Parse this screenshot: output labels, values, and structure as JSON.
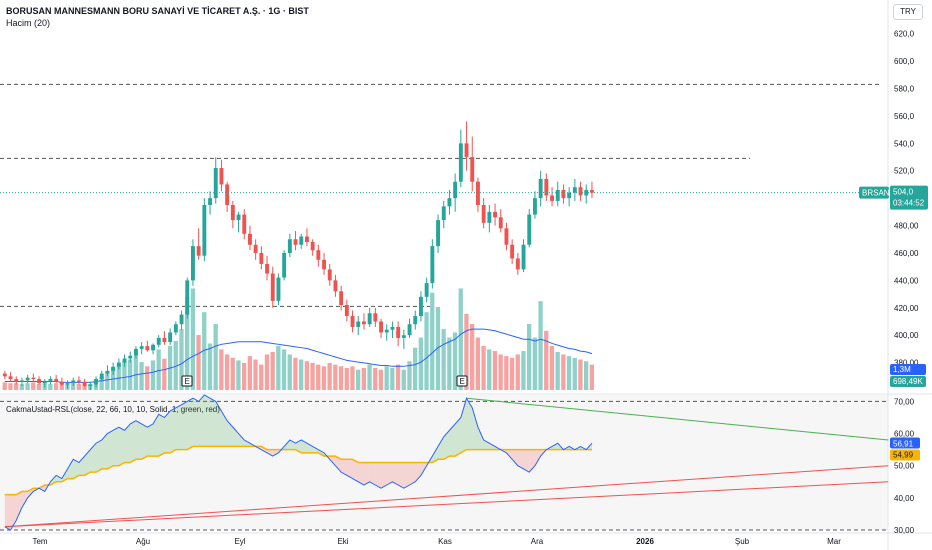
{
  "header": {
    "title": "BORUSAN MANNESMANN BORU SANAYİ VE TİCARET A.Ş. · 1G · BIST",
    "subtitle": "Hacim (20)",
    "currency": "TRY"
  },
  "indicator_label": "CakmaUstad-RSL(close, 22, 66, 10, 10, Solid, 1, green, red)",
  "colors": {
    "up": "#26a69a",
    "down": "#ef5350",
    "ma": "#2962ff",
    "signal": "#f7b500"
  },
  "chart_data": [
    {
      "type": "candlestick",
      "ylim": [
        360,
        630
      ],
      "price_ticks": [
        "620,0",
        "600,0",
        "580,0",
        "560,0",
        "540,0",
        "520,0",
        "500,0",
        "480,00",
        "460,00",
        "440,00",
        "420,00",
        "400,00",
        "380,00"
      ],
      "x_labels": [
        "Tem",
        "Ağu",
        "Eyl",
        "Eki",
        "Kas",
        "Ara",
        "2026",
        "Şub",
        "Mar"
      ],
      "last_price": {
        "symbol": "BRSAN",
        "price": "504,0",
        "countdown": "03:44:52"
      },
      "horizontal_levels": [
        583,
        529,
        421
      ],
      "candles": [
        [
          372,
          374,
          368,
          370
        ],
        [
          370,
          373,
          366,
          368
        ],
        [
          368,
          370,
          364,
          366
        ],
        [
          366,
          369,
          363,
          367
        ],
        [
          367,
          371,
          365,
          369
        ],
        [
          369,
          372,
          366,
          368
        ],
        [
          368,
          370,
          364,
          365
        ],
        [
          365,
          368,
          362,
          366
        ],
        [
          366,
          370,
          364,
          368
        ],
        [
          368,
          371,
          365,
          366
        ],
        [
          366,
          369,
          363,
          364
        ],
        [
          364,
          367,
          361,
          365
        ],
        [
          365,
          369,
          363,
          367
        ],
        [
          367,
          370,
          364,
          366
        ],
        [
          366,
          368,
          362,
          363
        ],
        [
          363,
          366,
          360,
          364
        ],
        [
          364,
          370,
          362,
          368
        ],
        [
          368,
          374,
          366,
          372
        ],
        [
          372,
          378,
          370,
          374
        ],
        [
          374,
          380,
          371,
          377
        ],
        [
          377,
          383,
          375,
          380
        ],
        [
          380,
          386,
          377,
          383
        ],
        [
          383,
          388,
          380,
          385
        ],
        [
          385,
          392,
          383,
          390
        ],
        [
          390,
          395,
          386,
          392
        ],
        [
          392,
          396,
          388,
          389
        ],
        [
          389,
          394,
          386,
          393
        ],
        [
          393,
          400,
          391,
          398
        ],
        [
          398,
          403,
          393,
          395
        ],
        [
          395,
          405,
          393,
          402
        ],
        [
          402,
          410,
          400,
          408
        ],
        [
          408,
          418,
          404,
          415
        ],
        [
          415,
          442,
          412,
          440
        ],
        [
          440,
          470,
          436,
          465
        ],
        [
          465,
          478,
          455,
          458
        ],
        [
          458,
          500,
          454,
          495
        ],
        [
          495,
          505,
          488,
          500
        ],
        [
          500,
          530,
          496,
          522
        ],
        [
          522,
          528,
          505,
          510
        ],
        [
          510,
          512,
          490,
          495
        ],
        [
          495,
          498,
          478,
          484
        ],
        [
          484,
          490,
          475,
          488
        ],
        [
          488,
          492,
          470,
          474
        ],
        [
          474,
          480,
          462,
          466
        ],
        [
          466,
          470,
          455,
          460
        ],
        [
          460,
          465,
          448,
          452
        ],
        [
          452,
          458,
          440,
          445
        ],
        [
          445,
          450,
          420,
          425
        ],
        [
          425,
          445,
          422,
          442
        ],
        [
          442,
          462,
          440,
          460
        ],
        [
          460,
          474,
          457,
          470
        ],
        [
          470,
          476,
          462,
          466
        ],
        [
          466,
          474,
          463,
          472
        ],
        [
          472,
          478,
          465,
          468
        ],
        [
          468,
          470,
          458,
          462
        ],
        [
          462,
          466,
          450,
          455
        ],
        [
          455,
          460,
          444,
          448
        ],
        [
          448,
          452,
          436,
          440
        ],
        [
          440,
          444,
          428,
          432
        ],
        [
          432,
          436,
          418,
          422
        ],
        [
          422,
          426,
          410,
          414
        ],
        [
          414,
          418,
          402,
          406
        ],
        [
          406,
          414,
          400,
          410
        ],
        [
          410,
          416,
          404,
          408
        ],
        [
          408,
          420,
          406,
          416
        ],
        [
          416,
          420,
          406,
          410
        ],
        [
          410,
          412,
          398,
          402
        ],
        [
          402,
          408,
          396,
          404
        ],
        [
          404,
          410,
          398,
          406
        ],
        [
          406,
          410,
          392,
          398
        ],
        [
          398,
          404,
          390,
          400
        ],
        [
          400,
          412,
          398,
          408
        ],
        [
          408,
          418,
          404,
          414
        ],
        [
          414,
          432,
          410,
          428
        ],
        [
          428,
          442,
          424,
          438
        ],
        [
          438,
          470,
          434,
          465
        ],
        [
          465,
          488,
          460,
          484
        ],
        [
          484,
          498,
          478,
          494
        ],
        [
          494,
          506,
          488,
          500
        ],
        [
          500,
          518,
          490,
          512
        ],
        [
          512,
          550,
          508,
          540
        ],
        [
          540,
          556,
          520,
          530
        ],
        [
          530,
          545,
          505,
          512
        ],
        [
          512,
          515,
          490,
          495
        ],
        [
          495,
          500,
          478,
          482
        ],
        [
          482,
          495,
          475,
          490
        ],
        [
          490,
          496,
          480,
          486
        ],
        [
          486,
          492,
          475,
          478
        ],
        [
          478,
          482,
          462,
          466
        ],
        [
          466,
          470,
          452,
          456
        ],
        [
          456,
          460,
          444,
          448
        ],
        [
          448,
          470,
          446,
          466
        ],
        [
          466,
          492,
          464,
          488
        ],
        [
          488,
          505,
          485,
          500
        ],
        [
          500,
          520,
          494,
          514
        ],
        [
          514,
          518,
          498,
          502
        ],
        [
          502,
          508,
          494,
          498
        ],
        [
          498,
          512,
          494,
          506
        ],
        [
          506,
          510,
          496,
          500
        ],
        [
          500,
          508,
          494,
          504
        ],
        [
          504,
          514,
          498,
          508
        ],
        [
          508,
          512,
          498,
          502
        ],
        [
          502,
          510,
          496,
          506
        ],
        [
          506,
          512,
          500,
          504
        ]
      ],
      "volume_scale_max": 1.3,
      "volume_badges": [
        "1,3M",
        "698,49K"
      ],
      "volumes": [
        0.09,
        0.08,
        0.08,
        0.07,
        0.08,
        0.09,
        0.07,
        0.08,
        0.07,
        0.08,
        0.09,
        0.07,
        0.08,
        0.07,
        0.08,
        0.07,
        0.12,
        0.16,
        0.22,
        0.27,
        0.3,
        0.34,
        0.36,
        0.4,
        0.33,
        0.28,
        0.35,
        0.48,
        0.37,
        0.52,
        0.58,
        0.72,
        1.1,
        1.2,
        0.65,
        0.92,
        0.55,
        0.78,
        0.48,
        0.42,
        0.38,
        0.35,
        0.32,
        0.4,
        0.36,
        0.3,
        0.42,
        0.45,
        0.52,
        0.48,
        0.42,
        0.38,
        0.36,
        0.34,
        0.32,
        0.3,
        0.28,
        0.32,
        0.3,
        0.28,
        0.26,
        0.28,
        0.24,
        0.26,
        0.3,
        0.26,
        0.24,
        0.28,
        0.26,
        0.3,
        0.24,
        0.34,
        0.5,
        0.62,
        0.92,
        1.15,
        0.98,
        0.72,
        0.62,
        0.68,
        1.2,
        0.9,
        0.78,
        0.62,
        0.52,
        0.48,
        0.46,
        0.42,
        0.4,
        0.38,
        0.42,
        0.46,
        0.78,
        0.62,
        1.05,
        0.7,
        0.52,
        0.45,
        0.42,
        0.4,
        0.38,
        0.36,
        0.34,
        0.3
      ],
      "volume_ma": [
        0.1,
        0.1,
        0.1,
        0.1,
        0.1,
        0.1,
        0.1,
        0.1,
        0.1,
        0.1,
        0.09,
        0.09,
        0.09,
        0.09,
        0.09,
        0.09,
        0.1,
        0.11,
        0.12,
        0.13,
        0.14,
        0.15,
        0.16,
        0.18,
        0.19,
        0.2,
        0.21,
        0.23,
        0.24,
        0.26,
        0.28,
        0.31,
        0.36,
        0.4,
        0.43,
        0.47,
        0.49,
        0.52,
        0.54,
        0.55,
        0.56,
        0.57,
        0.57,
        0.57,
        0.57,
        0.57,
        0.56,
        0.55,
        0.54,
        0.53,
        0.52,
        0.51,
        0.5,
        0.49,
        0.47,
        0.45,
        0.43,
        0.41,
        0.39,
        0.37,
        0.35,
        0.34,
        0.33,
        0.32,
        0.31,
        0.3,
        0.29,
        0.29,
        0.28,
        0.28,
        0.28,
        0.29,
        0.3,
        0.33,
        0.38,
        0.44,
        0.5,
        0.54,
        0.57,
        0.6,
        0.66,
        0.7,
        0.72,
        0.72,
        0.72,
        0.71,
        0.7,
        0.68,
        0.66,
        0.64,
        0.62,
        0.6,
        0.6,
        0.58,
        0.6,
        0.58,
        0.55,
        0.53,
        0.51,
        0.49,
        0.48,
        0.46,
        0.45,
        0.43
      ]
    },
    {
      "type": "line",
      "ylim": [
        30,
        72
      ],
      "y_ticks": [
        "70,00",
        "60,00",
        "50,00",
        "40,00",
        "30,00"
      ],
      "value_badges": [
        "56,91",
        "54,99"
      ],
      "levels": [
        70,
        30
      ],
      "rsl": [
        31,
        30,
        33,
        37,
        40,
        42,
        43,
        42,
        45,
        47,
        46,
        49,
        52,
        51,
        53,
        55,
        57,
        58,
        60,
        61,
        62,
        61,
        63,
        64,
        63,
        62,
        63,
        66,
        65,
        67,
        68,
        69,
        70,
        71,
        70,
        72,
        71,
        70,
        67,
        64,
        62,
        60,
        58,
        57,
        56,
        55,
        54,
        53,
        54,
        56,
        58,
        57,
        58,
        57,
        56,
        55,
        54,
        52,
        50,
        48,
        47,
        46,
        45,
        44,
        45,
        44,
        43,
        44,
        45,
        44,
        43,
        44,
        45,
        47,
        50,
        53,
        56,
        59,
        61,
        63,
        65,
        71,
        68,
        62,
        58,
        57,
        56,
        55,
        54,
        52,
        50,
        49,
        48,
        50,
        53,
        55,
        56,
        57,
        55,
        56,
        55,
        56,
        55,
        57
      ],
      "signal": [
        41,
        41,
        41,
        42,
        42,
        43,
        43,
        44,
        44,
        45,
        45,
        46,
        46,
        47,
        47,
        48,
        48,
        49,
        49,
        50,
        50,
        51,
        51,
        52,
        52,
        53,
        53,
        53,
        54,
        54,
        55,
        55,
        55,
        56,
        56,
        56,
        56,
        56,
        56,
        56,
        56,
        56,
        56,
        56,
        56,
        56,
        55,
        55,
        55,
        55,
        55,
        55,
        54,
        54,
        54,
        54,
        53,
        53,
        53,
        52,
        52,
        52,
        51,
        51,
        51,
        51,
        51,
        51,
        51,
        51,
        51,
        51,
        51,
        51,
        51,
        51,
        52,
        52,
        53,
        53,
        54,
        55,
        55,
        55,
        55,
        55,
        55,
        55,
        55,
        55,
        55,
        55,
        55,
        55,
        55,
        55,
        55,
        55,
        55,
        55,
        55,
        55,
        55,
        55
      ],
      "trendlines": [
        {
          "color": "#ef5350",
          "from": [
            0,
            31
          ],
          "to": [
            155,
            50
          ]
        },
        {
          "color": "#ef5350",
          "from": [
            0,
            31
          ],
          "to": [
            155,
            45
          ]
        },
        {
          "color": "#4caf50",
          "from": [
            81,
            71
          ],
          "to": [
            155,
            58
          ]
        }
      ]
    }
  ]
}
